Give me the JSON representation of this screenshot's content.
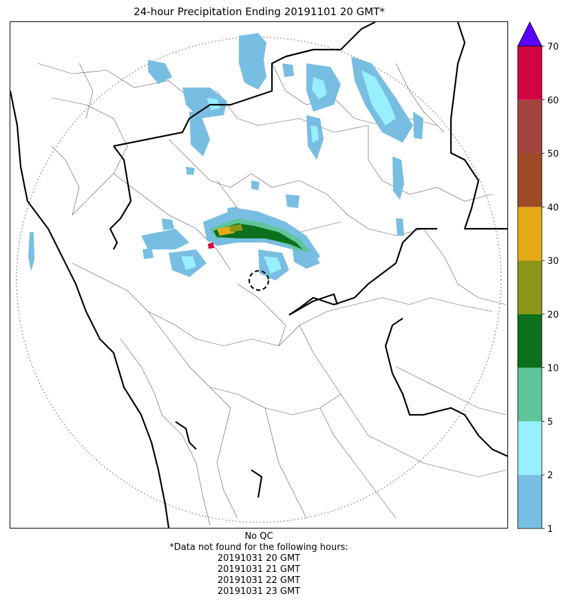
{
  "title": "24-hour Precipitation Ending 20191101 20 GMT*",
  "colorbar": {
    "tick_labels": [
      "1",
      "2",
      "5",
      "10",
      "20",
      "30",
      "40",
      "50",
      "60",
      "70"
    ],
    "bins": [
      {
        "lower": 1,
        "upper": 2,
        "color": "#78bee2"
      },
      {
        "lower": 2,
        "upper": 5,
        "color": "#97efff"
      },
      {
        "lower": 5,
        "upper": 10,
        "color": "#5ec59a"
      },
      {
        "lower": 10,
        "upper": 20,
        "color": "#0c701d"
      },
      {
        "lower": 20,
        "upper": 30,
        "color": "#8b9517"
      },
      {
        "lower": 30,
        "upper": 40,
        "color": "#e6aa16"
      },
      {
        "lower": 40,
        "upper": 50,
        "color": "#9c4b27"
      },
      {
        "lower": 50,
        "upper": 60,
        "color": "#a3443f"
      },
      {
        "lower": 60,
        "upper": 70,
        "color": "#d30441"
      }
    ],
    "extend_max_color": "#5a00ff"
  },
  "footer": {
    "qc_note": "No QC",
    "missing_note": "*Data not found for the following hours:",
    "missing_hours": [
      "20191031 20 GMT",
      "20191031 21 GMT",
      "20191031 22 GMT",
      "20191031 23 GMT"
    ]
  },
  "map": {
    "range_ring_style": "dotted-gray",
    "radar_site_marker": "dashed-circle",
    "state_border_color": "#000000",
    "district_border_color": "#333333"
  }
}
